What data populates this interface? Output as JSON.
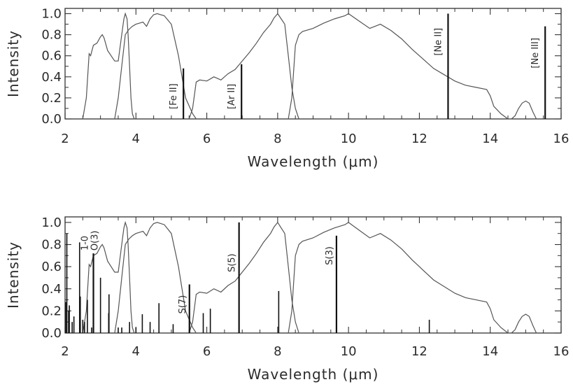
{
  "chart_data": [
    {
      "type": "line",
      "xlabel": "Wavelength (μm)",
      "ylabel": "Intensity",
      "xlim": [
        2,
        16
      ],
      "ylim": [
        0,
        1.05
      ],
      "xticks": [
        "2",
        "4",
        "6",
        "8",
        "10",
        "12",
        "14",
        "16"
      ],
      "yticks": [
        "0.0",
        "0.2",
        "0.4",
        "0.6",
        "0.8",
        "1.0"
      ],
      "grid": false,
      "filter_curves": [
        {
          "x": [
            2.5,
            2.6,
            2.68,
            2.72,
            2.8,
            2.9,
            3.0,
            3.05,
            3.1,
            3.2,
            3.3,
            3.4,
            3.5,
            3.58,
            3.62,
            3.66,
            3.7,
            3.72,
            3.75,
            3.78,
            3.82,
            3.86,
            3.9,
            3.95
          ],
          "y": [
            0.0,
            0.2,
            0.62,
            0.6,
            0.7,
            0.72,
            0.78,
            0.8,
            0.77,
            0.65,
            0.6,
            0.55,
            0.55,
            0.75,
            0.85,
            0.95,
            1.0,
            0.98,
            0.95,
            0.8,
            0.5,
            0.2,
            0.05,
            0.0
          ]
        },
        {
          "x": [
            3.4,
            3.5,
            3.6,
            3.7,
            3.8,
            3.9,
            4.0,
            4.2,
            4.3,
            4.4,
            4.5,
            4.6,
            4.8,
            5.0,
            5.2,
            5.4,
            5.6,
            5.7
          ],
          "y": [
            0.0,
            0.2,
            0.5,
            0.8,
            0.85,
            0.88,
            0.9,
            0.92,
            0.88,
            0.95,
            0.99,
            1.0,
            0.98,
            0.9,
            0.6,
            0.2,
            0.05,
            0.0
          ]
        },
        {
          "x": [
            5.5,
            5.6,
            5.7,
            5.8,
            6.0,
            6.2,
            6.4,
            6.6,
            6.8,
            7.0,
            7.2,
            7.4,
            7.6,
            7.8,
            7.9,
            8.0,
            8.1,
            8.2,
            8.3,
            8.4,
            8.5,
            8.6
          ],
          "y": [
            0.0,
            0.1,
            0.35,
            0.37,
            0.36,
            0.4,
            0.37,
            0.43,
            0.47,
            0.55,
            0.63,
            0.72,
            0.82,
            0.9,
            0.96,
            1.0,
            0.95,
            0.9,
            0.6,
            0.3,
            0.1,
            0.0
          ]
        },
        {
          "x": [
            8.3,
            8.4,
            8.5,
            8.6,
            8.7,
            9.0,
            9.3,
            9.6,
            9.9,
            10.0,
            10.3,
            10.6,
            10.9,
            11.2,
            11.5,
            11.8,
            12.1,
            12.4,
            12.7,
            13.0,
            13.3,
            13.6,
            13.9,
            14.0,
            14.1,
            14.3,
            14.5,
            14.6,
            14.7,
            14.8,
            14.9,
            15.0,
            15.1,
            15.2,
            15.3
          ],
          "y": [
            0.0,
            0.2,
            0.7,
            0.8,
            0.83,
            0.86,
            0.91,
            0.95,
            0.98,
            1.0,
            0.93,
            0.86,
            0.9,
            0.84,
            0.76,
            0.66,
            0.57,
            0.48,
            0.42,
            0.36,
            0.32,
            0.3,
            0.28,
            0.22,
            0.12,
            0.05,
            0.0,
            0.0,
            0.03,
            0.1,
            0.15,
            0.17,
            0.15,
            0.07,
            0.0
          ]
        }
      ],
      "lines": [
        {
          "label": "[Fe II]",
          "x": 5.34,
          "y": 0.48
        },
        {
          "label": "[Ar II]",
          "x": 6.98,
          "y": 0.52
        },
        {
          "label": "[Ne II]",
          "x": 12.81,
          "y": 1.0
        },
        {
          "label": "[Ne III]",
          "x": 15.55,
          "y": 0.88
        }
      ]
    },
    {
      "type": "line",
      "xlabel": "Wavelength (μm)",
      "ylabel": "Intensity",
      "xlim": [
        2,
        16
      ],
      "ylim": [
        0,
        1.05
      ],
      "xticks": [
        "2",
        "4",
        "6",
        "8",
        "10",
        "12",
        "14",
        "16"
      ],
      "yticks": [
        "0.0",
        "0.2",
        "0.4",
        "0.6",
        "0.8",
        "1.0"
      ],
      "grid": false,
      "filter_curves": [
        {
          "x": [
            2.5,
            2.6,
            2.68,
            2.72,
            2.8,
            2.9,
            3.0,
            3.05,
            3.1,
            3.2,
            3.3,
            3.4,
            3.5,
            3.58,
            3.62,
            3.66,
            3.7,
            3.72,
            3.75,
            3.78,
            3.82,
            3.86,
            3.9,
            3.95
          ],
          "y": [
            0.0,
            0.2,
            0.62,
            0.6,
            0.7,
            0.72,
            0.78,
            0.8,
            0.77,
            0.65,
            0.6,
            0.55,
            0.55,
            0.75,
            0.85,
            0.95,
            1.0,
            0.98,
            0.95,
            0.8,
            0.5,
            0.2,
            0.05,
            0.0
          ]
        },
        {
          "x": [
            3.4,
            3.5,
            3.6,
            3.7,
            3.8,
            3.9,
            4.0,
            4.2,
            4.3,
            4.4,
            4.5,
            4.6,
            4.8,
            5.0,
            5.2,
            5.4,
            5.6,
            5.7
          ],
          "y": [
            0.0,
            0.2,
            0.5,
            0.8,
            0.85,
            0.88,
            0.9,
            0.92,
            0.88,
            0.95,
            0.99,
            1.0,
            0.98,
            0.9,
            0.6,
            0.2,
            0.05,
            0.0
          ]
        },
        {
          "x": [
            5.5,
            5.6,
            5.7,
            5.8,
            6.0,
            6.2,
            6.4,
            6.6,
            6.8,
            7.0,
            7.2,
            7.4,
            7.6,
            7.8,
            7.9,
            8.0,
            8.1,
            8.2,
            8.3,
            8.4,
            8.5,
            8.6
          ],
          "y": [
            0.0,
            0.1,
            0.35,
            0.37,
            0.36,
            0.4,
            0.37,
            0.43,
            0.47,
            0.55,
            0.63,
            0.72,
            0.82,
            0.9,
            0.96,
            1.0,
            0.95,
            0.9,
            0.6,
            0.3,
            0.1,
            0.0
          ]
        },
        {
          "x": [
            8.3,
            8.4,
            8.5,
            8.6,
            8.7,
            9.0,
            9.3,
            9.6,
            9.9,
            10.0,
            10.3,
            10.6,
            10.9,
            11.2,
            11.5,
            11.8,
            12.1,
            12.4,
            12.7,
            13.0,
            13.3,
            13.6,
            13.9,
            14.0,
            14.1,
            14.3,
            14.5,
            14.6,
            14.7,
            14.8,
            14.9,
            15.0,
            15.1,
            15.2,
            15.3
          ],
          "y": [
            0.0,
            0.2,
            0.7,
            0.8,
            0.83,
            0.86,
            0.91,
            0.95,
            0.98,
            1.0,
            0.93,
            0.86,
            0.9,
            0.84,
            0.76,
            0.66,
            0.57,
            0.48,
            0.42,
            0.36,
            0.32,
            0.3,
            0.28,
            0.22,
            0.12,
            0.05,
            0.0,
            0.0,
            0.03,
            0.1,
            0.15,
            0.17,
            0.15,
            0.07,
            0.0
          ]
        }
      ],
      "lines": [
        {
          "label": "1-0\nO(3)",
          "x": 2.8,
          "y": 0.72
        },
        {
          "label": "S(7)",
          "x": 5.51,
          "y": 0.44
        },
        {
          "label": "S(5)",
          "x": 6.91,
          "y": 1.0
        },
        {
          "label": "S(3)",
          "x": 9.66,
          "y": 0.88
        }
      ],
      "minor_lines": [
        {
          "x": 2.02,
          "y": 0.28
        },
        {
          "x": 2.05,
          "y": 0.9
        },
        {
          "x": 2.1,
          "y": 0.2
        },
        {
          "x": 2.12,
          "y": 0.25
        },
        {
          "x": 2.2,
          "y": 0.1
        },
        {
          "x": 2.25,
          "y": 0.15
        },
        {
          "x": 2.41,
          "y": 0.82
        },
        {
          "x": 2.43,
          "y": 0.33
        },
        {
          "x": 2.5,
          "y": 0.12
        },
        {
          "x": 2.55,
          "y": 0.1
        },
        {
          "x": 2.63,
          "y": 0.3
        },
        {
          "x": 2.75,
          "y": 0.05
        },
        {
          "x": 3.0,
          "y": 0.5
        },
        {
          "x": 3.23,
          "y": 0.18
        },
        {
          "x": 3.24,
          "y": 0.35
        },
        {
          "x": 3.5,
          "y": 0.05
        },
        {
          "x": 3.6,
          "y": 0.05
        },
        {
          "x": 3.82,
          "y": 0.1
        },
        {
          "x": 4.0,
          "y": 0.05
        },
        {
          "x": 4.18,
          "y": 0.17
        },
        {
          "x": 4.4,
          "y": 0.1
        },
        {
          "x": 4.65,
          "y": 0.27
        },
        {
          "x": 5.05,
          "y": 0.08
        },
        {
          "x": 5.9,
          "y": 0.18
        },
        {
          "x": 6.1,
          "y": 0.22
        },
        {
          "x": 8.03,
          "y": 0.38
        },
        {
          "x": 12.28,
          "y": 0.12
        }
      ]
    }
  ]
}
